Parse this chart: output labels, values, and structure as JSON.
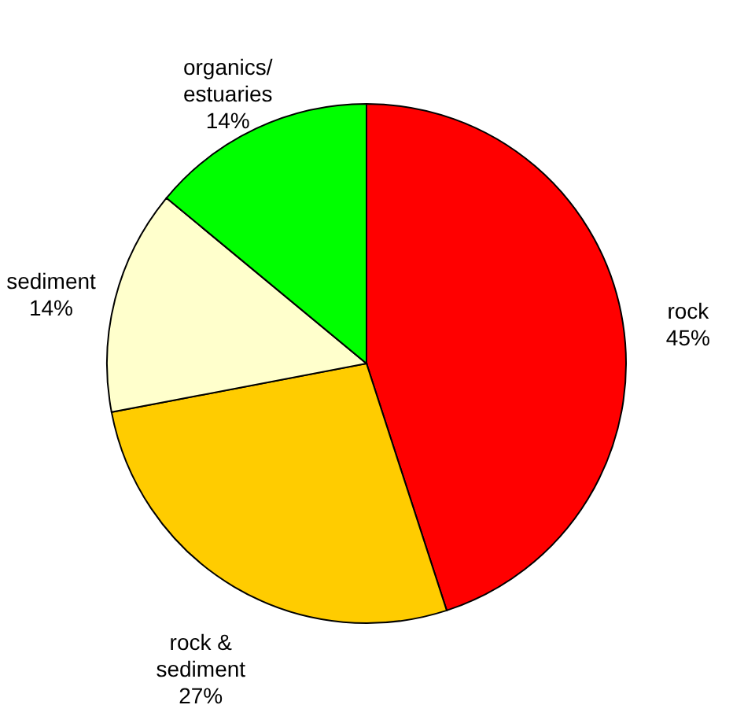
{
  "chart_data": {
    "type": "pie",
    "categories": [
      "rock",
      "rock &\nsediment",
      "sediment",
      "organics/\nestuaries"
    ],
    "values": [
      45,
      27,
      14,
      14
    ],
    "colors": [
      "#ff0000",
      "#ffcc00",
      "#ffffcc",
      "#00ff00"
    ],
    "value_labels": [
      "45%",
      "27%",
      "14%",
      "14%"
    ]
  }
}
